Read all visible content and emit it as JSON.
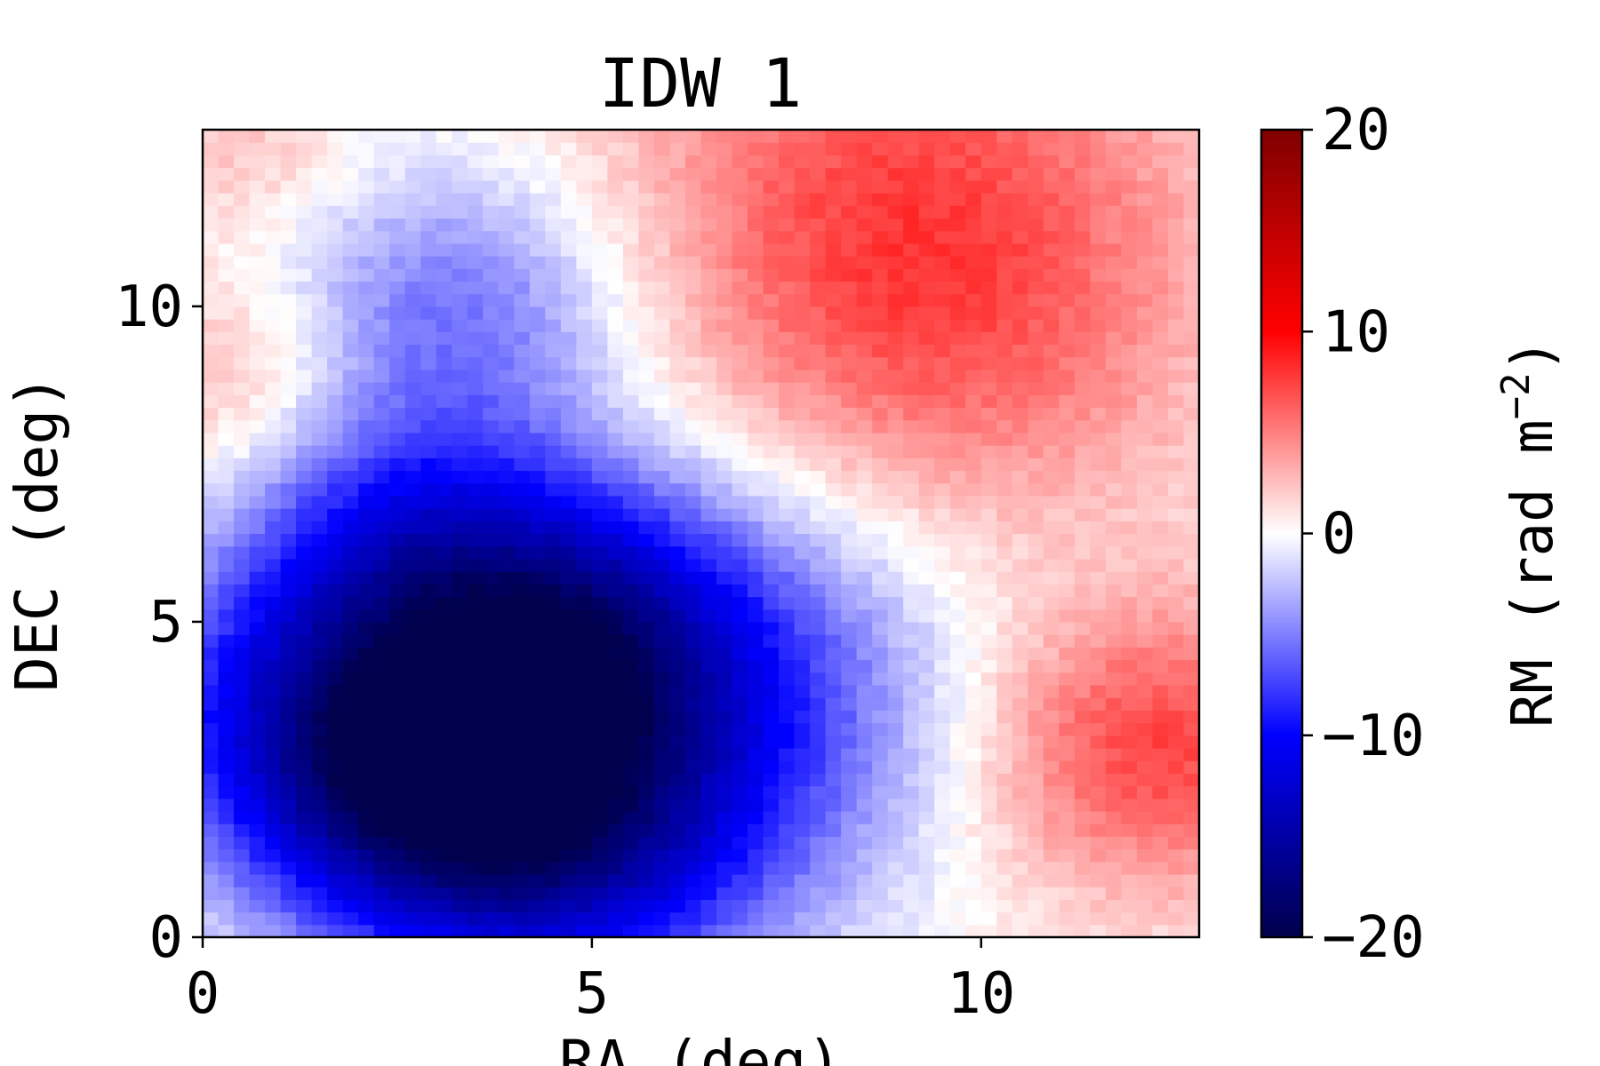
{
  "chart_data": {
    "type": "heatmap",
    "title": "IDW 1",
    "xlabel": "RA (deg)",
    "ylabel": "DEC (deg)",
    "xlim": [
      0,
      12.8
    ],
    "ylim": [
      0,
      12.8
    ],
    "xticks": [
      0,
      5,
      10
    ],
    "yticks": [
      0,
      5,
      10
    ],
    "colormap": "seismic",
    "colorbar": {
      "label": "RM (rad m",
      "label_superscript": "−2",
      "label_close": ")",
      "range": [
        -20,
        20
      ],
      "ticks": [
        20,
        10,
        0,
        -10,
        -20
      ],
      "tick_labels": [
        "20",
        "10",
        "0",
        "−10",
        "−20"
      ]
    },
    "field_features": [
      {
        "x": 8.9,
        "y": 11.8,
        "rm": 6,
        "spread": 2.6
      },
      {
        "x": 12.2,
        "y": 3.0,
        "rm": 7,
        "spread": 1.6
      },
      {
        "x": 9.8,
        "y": 9.0,
        "rm": 3,
        "spread": 2.2
      },
      {
        "x": 0.5,
        "y": 8.8,
        "rm": 3,
        "spread": 1.2
      },
      {
        "x": 0.6,
        "y": 12.4,
        "rm": 2,
        "spread": 0.9
      },
      {
        "x": 4.6,
        "y": 1.5,
        "rm": -12,
        "spread": 1.8
      },
      {
        "x": 1.6,
        "y": 3.7,
        "rm": -11,
        "spread": 1.7
      },
      {
        "x": 4.6,
        "y": 5.0,
        "rm": -11,
        "spread": 1.6
      },
      {
        "x": 3.3,
        "y": 10.0,
        "rm": -6,
        "spread": 1.6
      },
      {
        "x": 2.6,
        "y": 2.0,
        "rm": -9,
        "spread": 1.6
      },
      {
        "x": 6.5,
        "y": 3.8,
        "rm": -8,
        "spread": 2.2
      },
      {
        "x": 2.5,
        "y": 6.5,
        "rm": -7,
        "spread": 1.5
      }
    ],
    "background_rm": 0.5,
    "colors": {
      "neg_end": "#00004c",
      "neg_mid": "#0000ff",
      "center": "#ffffff",
      "pos_mid": "#ff0000",
      "pos_end": "#800000"
    }
  }
}
